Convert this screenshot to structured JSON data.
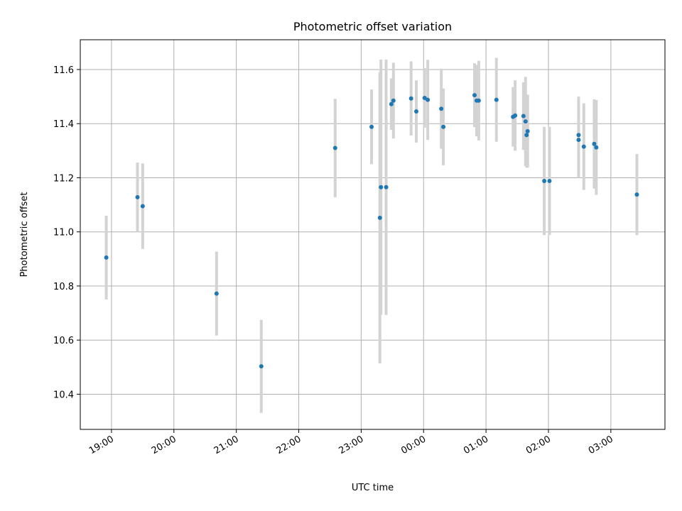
{
  "chart_data": {
    "type": "scatter",
    "title": "Photometric offset variation",
    "xlabel": "UTC time",
    "ylabel": "Photometric offset",
    "x_unit": "UTC time (hours after 18:00 on first night)",
    "xlim_labels": [
      "18:30",
      "03:52"
    ],
    "xticks": [
      {
        "t": 1.0,
        "label": "19:00"
      },
      {
        "t": 2.0,
        "label": "20:00"
      },
      {
        "t": 3.0,
        "label": "21:00"
      },
      {
        "t": 4.0,
        "label": "22:00"
      },
      {
        "t": 5.0,
        "label": "23:00"
      },
      {
        "t": 6.0,
        "label": "00:00"
      },
      {
        "t": 7.0,
        "label": "01:00"
      },
      {
        "t": 8.0,
        "label": "02:00"
      },
      {
        "t": 9.0,
        "label": "03:00"
      }
    ],
    "yticks": [
      10.4,
      10.6,
      10.8,
      11.0,
      11.2,
      11.4,
      11.6
    ],
    "ylim": [
      10.27,
      11.71
    ],
    "grid": true,
    "marker_color": "#1f77b4",
    "errorbar_color": "#d3d3d3",
    "points": [
      {
        "time": "18:55",
        "y": 10.905,
        "err": 0.155
      },
      {
        "time": "19:25",
        "y": 11.128,
        "err": 0.128
      },
      {
        "time": "19:30",
        "y": 11.095,
        "err": 0.158
      },
      {
        "time": "20:41",
        "y": 10.772,
        "err": 0.155
      },
      {
        "time": "21:24",
        "y": 10.503,
        "err": 0.172
      },
      {
        "time": "22:35",
        "y": 11.31,
        "err": 0.182
      },
      {
        "time": "23:10",
        "y": 11.388,
        "err": 0.138
      },
      {
        "time": "23:18",
        "y": 11.052,
        "err": 0.538
      },
      {
        "time": "23:19",
        "y": 11.165,
        "err": 0.472
      },
      {
        "time": "23:24",
        "y": 11.165,
        "err": 0.472
      },
      {
        "time": "23:29",
        "y": 11.472,
        "err": 0.095
      },
      {
        "time": "23:31",
        "y": 11.485,
        "err": 0.14
      },
      {
        "time": "23:48",
        "y": 11.493,
        "err": 0.137
      },
      {
        "time": "23:53",
        "y": 11.445,
        "err": 0.115
      },
      {
        "time": "00:01",
        "y": 11.495,
        "err": 0.11
      },
      {
        "time": "00:04",
        "y": 11.488,
        "err": 0.148
      },
      {
        "time": "00:17",
        "y": 11.455,
        "err": 0.148
      },
      {
        "time": "00:19",
        "y": 11.388,
        "err": 0.142
      },
      {
        "time": "00:49",
        "y": 11.505,
        "err": 0.118
      },
      {
        "time": "00:51",
        "y": 11.485,
        "err": 0.132
      },
      {
        "time": "00:53",
        "y": 11.485,
        "err": 0.147
      },
      {
        "time": "01:10",
        "y": 11.488,
        "err": 0.155
      },
      {
        "time": "01:26",
        "y": 11.425,
        "err": 0.11
      },
      {
        "time": "01:28",
        "y": 11.43,
        "err": 0.13
      },
      {
        "time": "01:36",
        "y": 11.428,
        "err": 0.125
      },
      {
        "time": "01:38",
        "y": 11.408,
        "err": 0.165
      },
      {
        "time": "01:39",
        "y": 11.358,
        "err": 0.12
      },
      {
        "time": "01:40",
        "y": 11.372,
        "err": 0.135
      },
      {
        "time": "01:56",
        "y": 11.188,
        "err": 0.2
      },
      {
        "time": "02:01",
        "y": 11.188,
        "err": 0.2
      },
      {
        "time": "02:29",
        "y": 11.358,
        "err": 0.142
      },
      {
        "time": "02:29",
        "y": 11.34,
        "err": 0.14
      },
      {
        "time": "02:34",
        "y": 11.315,
        "err": 0.16
      },
      {
        "time": "02:44",
        "y": 11.325,
        "err": 0.165
      },
      {
        "time": "02:46",
        "y": 11.312,
        "err": 0.175
      },
      {
        "time": "03:25",
        "y": 11.138,
        "err": 0.15
      }
    ]
  }
}
